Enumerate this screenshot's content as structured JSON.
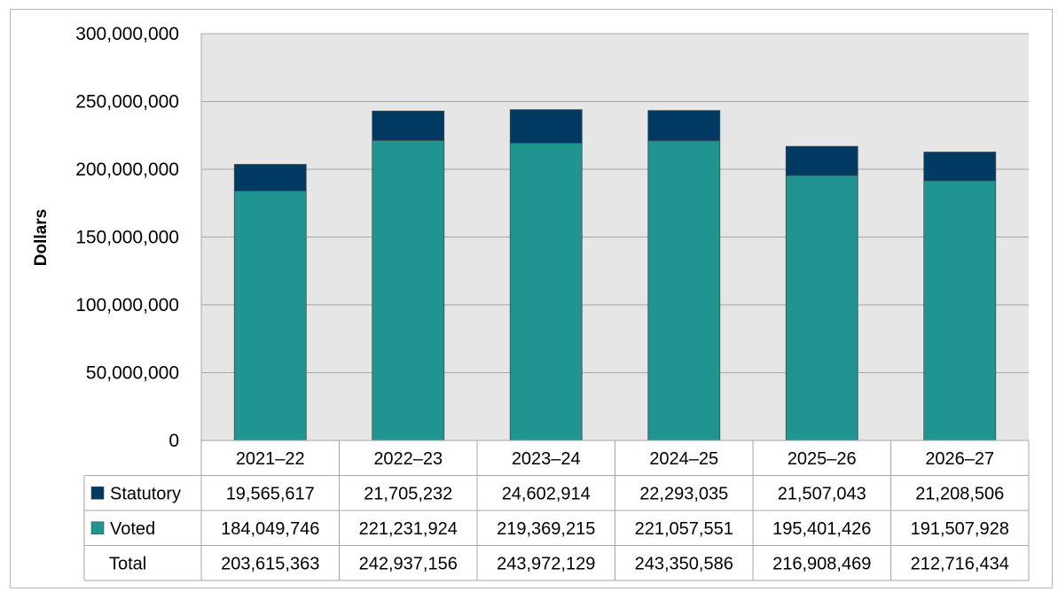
{
  "chart_data": {
    "type": "bar",
    "stacked": true,
    "ylabel": "Dollars",
    "ylim": [
      0,
      300000000
    ],
    "yticks": [
      0,
      50000000,
      100000000,
      150000000,
      200000000,
      250000000,
      300000000
    ],
    "ytick_labels": [
      "0",
      "50,000,000",
      "100,000,000",
      "150,000,000",
      "200,000,000",
      "250,000,000",
      "300,000,000"
    ],
    "categories": [
      "2021–22",
      "2022–23",
      "2023–24",
      "2024–25",
      "2025–26",
      "2026–27"
    ],
    "series": [
      {
        "name": "Voted",
        "color": "#1f9491",
        "values": [
          184049746,
          221231924,
          219369215,
          221057551,
          195401426,
          191507928
        ],
        "labels": [
          "184,049,746",
          "221,231,924",
          "219,369,215",
          "221,057,551",
          "195,401,426",
          "191,507,928"
        ]
      },
      {
        "name": "Statutory",
        "color": "#003a62",
        "values": [
          19565617,
          21705232,
          24602914,
          22293035,
          21507043,
          21208506
        ],
        "labels": [
          "19,565,617",
          "21,705,232",
          "24,602,914",
          "22,293,035",
          "21,507,043",
          "21,208,506"
        ]
      }
    ],
    "total": {
      "name": "Total",
      "values": [
        203615363,
        242937156,
        243972129,
        243350586,
        216908469,
        212716434
      ],
      "labels": [
        "203,615,363",
        "242,937,156",
        "243,972,129",
        "243,350,586",
        "216,908,469",
        "212,716,434"
      ]
    },
    "table_row_order": [
      "Statutory",
      "Voted",
      "Total"
    ],
    "grid": true,
    "plot_background": "#e6e6e6",
    "legend": "data-table"
  }
}
